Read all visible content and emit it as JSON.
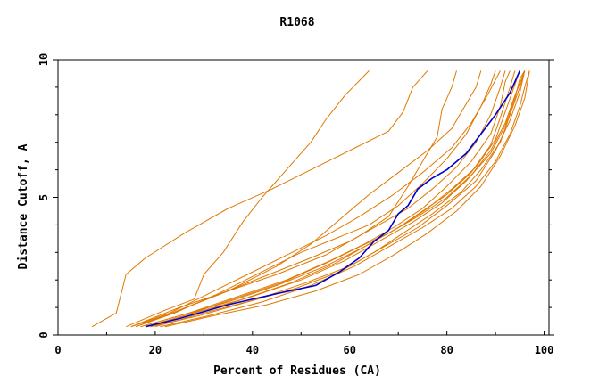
{
  "chart_data": {
    "type": "line",
    "title": "R1068",
    "xlabel": "Percent of Residues (CA)",
    "ylabel": "Distance Cutoff, A",
    "xlim": [
      0,
      101
    ],
    "ylim": [
      0,
      10
    ],
    "xticks": [
      "0",
      "20",
      "40",
      "60",
      "80",
      "100"
    ],
    "yticks": [
      "0",
      "5",
      "10"
    ],
    "grid": false,
    "legend": "none",
    "colors": {
      "highlight": "#0000cc",
      "others": "#e07800",
      "axis": "#000000",
      "background": "#ffffff"
    },
    "series": [
      {
        "color": "#0000cc",
        "highlight": true,
        "points": [
          [
            18,
            0.3
          ],
          [
            25,
            0.6
          ],
          [
            35,
            1.1
          ],
          [
            45,
            1.5
          ],
          [
            53,
            1.8
          ],
          [
            58,
            2.3
          ],
          [
            62,
            2.8
          ],
          [
            65,
            3.4
          ],
          [
            68,
            3.8
          ],
          [
            70,
            4.4
          ],
          [
            72,
            4.7
          ],
          [
            74,
            5.3
          ],
          [
            77,
            5.7
          ],
          [
            80,
            6.0
          ],
          [
            84,
            6.6
          ],
          [
            87,
            7.3
          ],
          [
            90,
            8.0
          ],
          [
            93,
            8.8
          ],
          [
            95,
            9.6
          ]
        ]
      },
      {
        "color": "#e07800",
        "points": [
          [
            7,
            0.3
          ],
          [
            12,
            0.8
          ],
          [
            14,
            2.2
          ],
          [
            18,
            2.8
          ],
          [
            26,
            3.7
          ],
          [
            35,
            4.6
          ],
          [
            44,
            5.3
          ],
          [
            52,
            6.0
          ],
          [
            60,
            6.7
          ],
          [
            68,
            7.4
          ],
          [
            71,
            8.1
          ],
          [
            73,
            9.0
          ],
          [
            76,
            9.6
          ]
        ]
      },
      {
        "color": "#e07800",
        "points": [
          [
            14,
            0.3
          ],
          [
            22,
            0.9
          ],
          [
            28,
            1.3
          ],
          [
            30,
            2.2
          ],
          [
            34,
            3.0
          ],
          [
            38,
            4.1
          ],
          [
            42,
            5.0
          ],
          [
            47,
            6.0
          ],
          [
            52,
            7.0
          ],
          [
            55,
            7.8
          ],
          [
            59,
            8.7
          ],
          [
            64,
            9.6
          ]
        ]
      },
      {
        "color": "#e07800",
        "points": [
          [
            15,
            0.3
          ],
          [
            25,
            1.0
          ],
          [
            35,
            1.6
          ],
          [
            45,
            2.2
          ],
          [
            55,
            2.9
          ],
          [
            62,
            3.6
          ],
          [
            68,
            4.3
          ],
          [
            72,
            5.4
          ],
          [
            75,
            6.3
          ],
          [
            78,
            7.2
          ],
          [
            79,
            8.2
          ],
          [
            81,
            9.0
          ],
          [
            82,
            9.6
          ]
        ]
      },
      {
        "color": "#e07800",
        "points": [
          [
            16,
            0.3
          ],
          [
            25,
            0.9
          ],
          [
            35,
            1.6
          ],
          [
            45,
            2.5
          ],
          [
            52,
            3.3
          ],
          [
            58,
            4.2
          ],
          [
            64,
            5.1
          ],
          [
            70,
            5.9
          ],
          [
            76,
            6.7
          ],
          [
            81,
            7.5
          ],
          [
            84,
            8.4
          ],
          [
            86,
            9.0
          ],
          [
            87,
            9.6
          ]
        ]
      },
      {
        "color": "#e07800",
        "points": [
          [
            15,
            0.3
          ],
          [
            22,
            0.7
          ],
          [
            32,
            1.4
          ],
          [
            42,
            2.1
          ],
          [
            52,
            2.8
          ],
          [
            60,
            3.4
          ],
          [
            66,
            4.0
          ],
          [
            72,
            4.6
          ],
          [
            77,
            5.3
          ],
          [
            82,
            6.1
          ],
          [
            86,
            7.0
          ],
          [
            89,
            8.0
          ],
          [
            91,
            9.0
          ],
          [
            92,
            9.6
          ]
        ]
      },
      {
        "color": "#e07800",
        "points": [
          [
            17,
            0.3
          ],
          [
            25,
            0.7
          ],
          [
            35,
            1.2
          ],
          [
            45,
            1.8
          ],
          [
            55,
            2.5
          ],
          [
            63,
            3.2
          ],
          [
            70,
            3.9
          ],
          [
            75,
            4.5
          ],
          [
            80,
            5.1
          ],
          [
            85,
            5.9
          ],
          [
            89,
            6.9
          ],
          [
            91,
            7.9
          ],
          [
            93,
            9.0
          ],
          [
            94,
            9.6
          ]
        ]
      },
      {
        "color": "#e07800",
        "points": [
          [
            18,
            0.3
          ],
          [
            28,
            0.8
          ],
          [
            38,
            1.3
          ],
          [
            48,
            1.9
          ],
          [
            57,
            2.6
          ],
          [
            64,
            3.3
          ],
          [
            71,
            4.0
          ],
          [
            76,
            4.6
          ],
          [
            81,
            5.3
          ],
          [
            86,
            6.1
          ],
          [
            90,
            7.1
          ],
          [
            92,
            8.1
          ],
          [
            94,
            9.1
          ],
          [
            95,
            9.6
          ]
        ]
      },
      {
        "color": "#e07800",
        "points": [
          [
            17,
            0.3
          ],
          [
            27,
            0.8
          ],
          [
            37,
            1.4
          ],
          [
            47,
            2.0
          ],
          [
            56,
            2.7
          ],
          [
            63,
            3.3
          ],
          [
            69,
            3.9
          ],
          [
            75,
            4.6
          ],
          [
            80,
            5.4
          ],
          [
            85,
            6.3
          ],
          [
            89,
            7.3
          ],
          [
            91,
            8.3
          ],
          [
            92,
            9.2
          ],
          [
            93,
            9.6
          ]
        ]
      },
      {
        "color": "#e07800",
        "points": [
          [
            19,
            0.3
          ],
          [
            29,
            0.8
          ],
          [
            40,
            1.4
          ],
          [
            50,
            2.0
          ],
          [
            59,
            2.7
          ],
          [
            66,
            3.4
          ],
          [
            73,
            4.1
          ],
          [
            79,
            4.8
          ],
          [
            84,
            5.6
          ],
          [
            89,
            6.6
          ],
          [
            92,
            7.6
          ],
          [
            94,
            8.6
          ],
          [
            95,
            9.3
          ],
          [
            96,
            9.6
          ]
        ]
      },
      {
        "color": "#e07800",
        "points": [
          [
            20,
            0.3
          ],
          [
            30,
            0.8
          ],
          [
            41,
            1.3
          ],
          [
            51,
            1.9
          ],
          [
            60,
            2.5
          ],
          [
            67,
            3.2
          ],
          [
            74,
            3.9
          ],
          [
            80,
            4.7
          ],
          [
            86,
            5.6
          ],
          [
            90,
            6.7
          ],
          [
            93,
            7.8
          ],
          [
            95,
            8.8
          ],
          [
            96,
            9.6
          ]
        ]
      },
      {
        "color": "#e07800",
        "points": [
          [
            16,
            0.3
          ],
          [
            24,
            0.8
          ],
          [
            33,
            1.5
          ],
          [
            42,
            2.3
          ],
          [
            50,
            3.0
          ],
          [
            57,
            3.5
          ],
          [
            64,
            4.0
          ],
          [
            70,
            4.7
          ],
          [
            75,
            5.5
          ],
          [
            80,
            6.4
          ],
          [
            84,
            7.3
          ],
          [
            87,
            8.3
          ],
          [
            89,
            9.1
          ],
          [
            90,
            9.6
          ]
        ]
      },
      {
        "color": "#e07800",
        "points": [
          [
            18,
            0.3
          ],
          [
            26,
            0.7
          ],
          [
            36,
            1.3
          ],
          [
            46,
            1.9
          ],
          [
            55,
            2.6
          ],
          [
            62,
            3.2
          ],
          [
            68,
            3.7
          ],
          [
            74,
            4.3
          ],
          [
            80,
            5.0
          ],
          [
            85,
            5.8
          ],
          [
            89,
            6.7
          ],
          [
            92,
            7.7
          ],
          [
            94,
            8.7
          ],
          [
            96,
            9.6
          ]
        ]
      },
      {
        "color": "#e07800",
        "points": [
          [
            21,
            0.3
          ],
          [
            31,
            0.7
          ],
          [
            42,
            1.2
          ],
          [
            52,
            1.8
          ],
          [
            61,
            2.5
          ],
          [
            68,
            3.2
          ],
          [
            75,
            3.9
          ],
          [
            81,
            4.6
          ],
          [
            86,
            5.4
          ],
          [
            90,
            6.3
          ],
          [
            93,
            7.3
          ],
          [
            95,
            8.3
          ],
          [
            96,
            9.0
          ],
          [
            97,
            9.6
          ]
        ]
      },
      {
        "color": "#e07800",
        "points": [
          [
            15,
            0.3
          ],
          [
            23,
            0.8
          ],
          [
            31,
            1.5
          ],
          [
            39,
            2.2
          ],
          [
            47,
            2.9
          ],
          [
            55,
            3.6
          ],
          [
            62,
            4.3
          ],
          [
            69,
            5.1
          ],
          [
            75,
            5.9
          ],
          [
            81,
            6.8
          ],
          [
            85,
            7.7
          ],
          [
            88,
            8.6
          ],
          [
            91,
            9.6
          ]
        ]
      },
      {
        "color": "#e07800",
        "points": [
          [
            19,
            0.3
          ],
          [
            29,
            0.7
          ],
          [
            39,
            1.2
          ],
          [
            49,
            1.7
          ],
          [
            58,
            2.3
          ],
          [
            65,
            3.0
          ],
          [
            71,
            3.7
          ],
          [
            77,
            4.4
          ],
          [
            83,
            5.2
          ],
          [
            87,
            6.0
          ],
          [
            91,
            7.0
          ],
          [
            93,
            8.0
          ],
          [
            95,
            9.0
          ],
          [
            96,
            9.6
          ]
        ]
      },
      {
        "color": "#e07800",
        "points": [
          [
            22,
            0.3
          ],
          [
            32,
            0.7
          ],
          [
            43,
            1.1
          ],
          [
            53,
            1.6
          ],
          [
            62,
            2.2
          ],
          [
            69,
            2.9
          ],
          [
            76,
            3.7
          ],
          [
            82,
            4.5
          ],
          [
            87,
            5.4
          ],
          [
            91,
            6.5
          ],
          [
            94,
            7.6
          ],
          [
            96,
            8.6
          ],
          [
            97,
            9.6
          ]
        ]
      }
    ]
  }
}
